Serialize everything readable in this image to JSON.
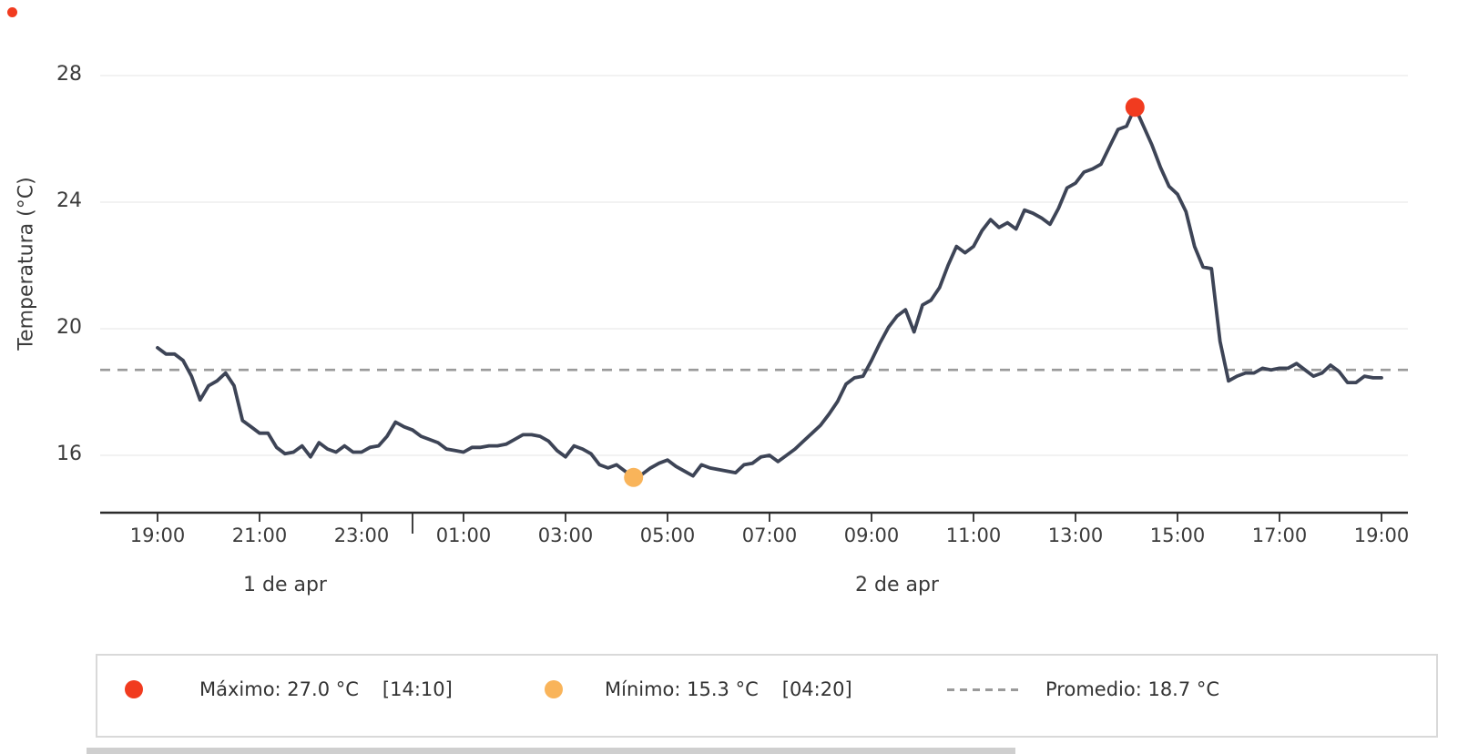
{
  "chart_data": {
    "type": "line",
    "title": "",
    "xlabel": "",
    "ylabel": "Temperatura (°C)",
    "yticks": [
      16,
      20,
      24,
      28
    ],
    "ylim": [
      14.2,
      28.9
    ],
    "grid": true,
    "legend_position": "bottom",
    "x_start": "19:00",
    "x_interval_minutes": 10,
    "x_tick_labels": [
      "19:00",
      "21:00",
      "23:00",
      "01:00",
      "03:00",
      "05:00",
      "07:00",
      "09:00",
      "11:00",
      "13:00",
      "15:00",
      "17:00",
      "19:00"
    ],
    "day_labels": [
      "1 de apr",
      "2 de apr"
    ],
    "average_value": 18.7,
    "max_point": {
      "index": 115,
      "time": "14:10",
      "value": 27.0
    },
    "min_point": {
      "index": 56,
      "time": "04:20",
      "value": 15.3
    },
    "series": [
      {
        "name": "Temperatura",
        "values": [
          19.4,
          19.2,
          19.2,
          19.0,
          18.5,
          17.75,
          18.2,
          18.35,
          18.6,
          18.2,
          17.1,
          16.9,
          16.7,
          16.7,
          16.25,
          16.05,
          16.1,
          16.3,
          15.95,
          16.4,
          16.2,
          16.1,
          16.3,
          16.1,
          16.1,
          16.25,
          16.3,
          16.6,
          17.05,
          16.9,
          16.8,
          16.6,
          16.5,
          16.4,
          16.2,
          16.15,
          16.1,
          16.25,
          16.25,
          16.3,
          16.3,
          16.35,
          16.5,
          16.65,
          16.65,
          16.6,
          16.45,
          16.15,
          15.95,
          16.3,
          16.2,
          16.05,
          15.7,
          15.6,
          15.7,
          15.5,
          15.3,
          15.4,
          15.6,
          15.75,
          15.85,
          15.65,
          15.5,
          15.35,
          15.7,
          15.6,
          15.55,
          15.5,
          15.45,
          15.7,
          15.75,
          15.95,
          16.0,
          15.8,
          16.0,
          16.2,
          16.45,
          16.7,
          16.95,
          17.3,
          17.7,
          18.25,
          18.45,
          18.5,
          19.0,
          19.55,
          20.05,
          20.4,
          20.6,
          19.9,
          20.75,
          20.9,
          21.3,
          22.0,
          22.6,
          22.4,
          22.6,
          23.1,
          23.45,
          23.2,
          23.35,
          23.15,
          23.75,
          23.65,
          23.5,
          23.3,
          23.8,
          24.45,
          24.6,
          24.95,
          25.05,
          25.2,
          25.75,
          26.3,
          26.4,
          27.0,
          26.4,
          25.8,
          25.1,
          24.5,
          24.25,
          23.7,
          22.6,
          21.95,
          21.9,
          19.6,
          18.35,
          18.5,
          18.6,
          18.6,
          18.75,
          18.7,
          18.75,
          18.75,
          18.9,
          18.7,
          18.5,
          18.6,
          18.85,
          18.65,
          18.3,
          18.3,
          18.5,
          18.45,
          18.45
        ]
      }
    ]
  },
  "legend": {
    "max_label": "Máximo: 27.0 °C",
    "max_time": "[14:10]",
    "min_label": "Mínimo: 15.3 °C",
    "min_time": "[04:20]",
    "avg_label": "Promedio: 18.7 °C"
  },
  "colors": {
    "line": "#3d4456",
    "max_marker": "#f13b1f",
    "min_marker": "#f9b45a",
    "average_line": "#9a9a9a",
    "grid": "#ededed",
    "axis": "#2b2b2b",
    "text": "#3b3b3b",
    "legend_border": "#d9d9d9",
    "background": "#ffffff",
    "cursor_dot": "#f13b1f"
  }
}
